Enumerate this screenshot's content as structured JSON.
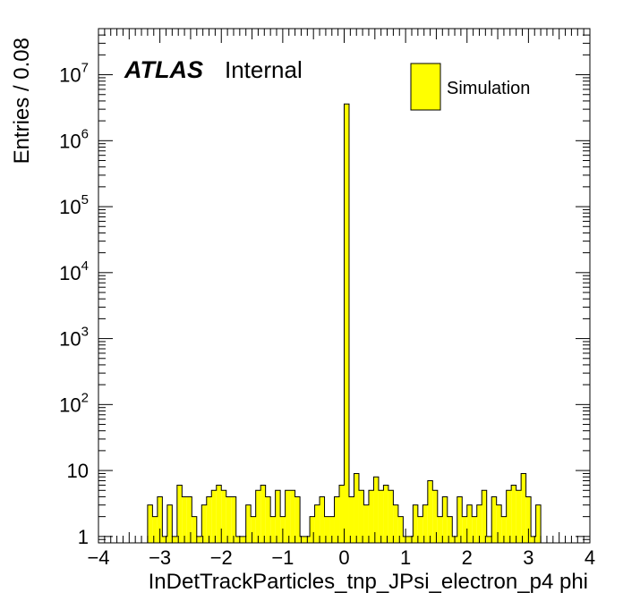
{
  "chart_data": {
    "type": "bar",
    "x_label": "InDetTrackParticles_tnp_JPsi_electron_p4 phi",
    "y_label": "Entries / 0.08",
    "xlim": [
      -4,
      4
    ],
    "ylim": [
      0.8,
      50000000
    ],
    "y_scale": "log",
    "bin_width": 0.08,
    "x_ticks": [
      "−4",
      "−3",
      "−2",
      "−1",
      "0",
      "1",
      "2",
      "3",
      "4"
    ],
    "y_ticks": [
      {
        "base": "1",
        "exp": ""
      },
      {
        "base": "10",
        "exp": ""
      },
      {
        "base": "10",
        "exp": "2"
      },
      {
        "base": "10",
        "exp": "3"
      },
      {
        "base": "10",
        "exp": "4"
      },
      {
        "base": "10",
        "exp": "5"
      },
      {
        "base": "10",
        "exp": "6"
      },
      {
        "base": "10",
        "exp": "7"
      }
    ],
    "atlas_label": "ATLAS",
    "atlas_status": "Internal",
    "legend": [
      {
        "name": "Simulation",
        "color": "#ffff00"
      }
    ],
    "fill_color": "#ffff00",
    "series": [
      {
        "name": "Simulation",
        "bins": [
          {
            "x": -3.2,
            "y": 3
          },
          {
            "x": -3.12,
            "y": 2
          },
          {
            "x": -3.04,
            "y": 4
          },
          {
            "x": -2.96,
            "y": 1
          },
          {
            "x": -2.88,
            "y": 3
          },
          {
            "x": -2.8,
            "y": 1
          },
          {
            "x": -2.72,
            "y": 6
          },
          {
            "x": -2.64,
            "y": 4
          },
          {
            "x": -2.56,
            "y": 4
          },
          {
            "x": -2.48,
            "y": 2
          },
          {
            "x": -2.4,
            "y": 1
          },
          {
            "x": -2.32,
            "y": 3
          },
          {
            "x": -2.24,
            "y": 4
          },
          {
            "x": -2.16,
            "y": 5
          },
          {
            "x": -2.08,
            "y": 6
          },
          {
            "x": -2.0,
            "y": 5
          },
          {
            "x": -1.92,
            "y": 4
          },
          {
            "x": -1.84,
            "y": 4
          },
          {
            "x": -1.76,
            "y": 1
          },
          {
            "x": -1.68,
            "y": 1
          },
          {
            "x": -1.6,
            "y": 3
          },
          {
            "x": -1.52,
            "y": 2
          },
          {
            "x": -1.44,
            "y": 5
          },
          {
            "x": -1.36,
            "y": 6
          },
          {
            "x": -1.28,
            "y": 4
          },
          {
            "x": -1.2,
            "y": 2
          },
          {
            "x": -1.12,
            "y": 5
          },
          {
            "x": -1.04,
            "y": 2
          },
          {
            "x": -0.96,
            "y": 5
          },
          {
            "x": -0.88,
            "y": 5
          },
          {
            "x": -0.8,
            "y": 4
          },
          {
            "x": -0.72,
            "y": 1
          },
          {
            "x": -0.64,
            "y": 1
          },
          {
            "x": -0.56,
            "y": 2
          },
          {
            "x": -0.48,
            "y": 3
          },
          {
            "x": -0.4,
            "y": 4
          },
          {
            "x": -0.32,
            "y": 2
          },
          {
            "x": -0.24,
            "y": 2
          },
          {
            "x": -0.16,
            "y": 4
          },
          {
            "x": -0.08,
            "y": 6
          },
          {
            "x": 0.0,
            "y": 3600000
          },
          {
            "x": 0.08,
            "y": 4
          },
          {
            "x": 0.16,
            "y": 9
          },
          {
            "x": 0.24,
            "y": 5
          },
          {
            "x": 0.32,
            "y": 3
          },
          {
            "x": 0.4,
            "y": 5
          },
          {
            "x": 0.48,
            "y": 8
          },
          {
            "x": 0.56,
            "y": 5
          },
          {
            "x": 0.64,
            "y": 6
          },
          {
            "x": 0.72,
            "y": 5
          },
          {
            "x": 0.8,
            "y": 3
          },
          {
            "x": 0.88,
            "y": 2
          },
          {
            "x": 0.96,
            "y": 1
          },
          {
            "x": 1.04,
            "y": 1
          },
          {
            "x": 1.12,
            "y": 3
          },
          {
            "x": 1.2,
            "y": 2
          },
          {
            "x": 1.28,
            "y": 3
          },
          {
            "x": 1.36,
            "y": 7
          },
          {
            "x": 1.44,
            "y": 5
          },
          {
            "x": 1.52,
            "y": 2
          },
          {
            "x": 1.6,
            "y": 4
          },
          {
            "x": 1.68,
            "y": 2
          },
          {
            "x": 1.76,
            "y": 1
          },
          {
            "x": 1.84,
            "y": 4
          },
          {
            "x": 1.92,
            "y": 2
          },
          {
            "x": 2.0,
            "y": 3
          },
          {
            "x": 2.08,
            "y": 2
          },
          {
            "x": 2.16,
            "y": 3
          },
          {
            "x": 2.24,
            "y": 5
          },
          {
            "x": 2.32,
            "y": 1
          },
          {
            "x": 2.4,
            "y": 4
          },
          {
            "x": 2.48,
            "y": 3
          },
          {
            "x": 2.56,
            "y": 2
          },
          {
            "x": 2.64,
            "y": 5
          },
          {
            "x": 2.72,
            "y": 6
          },
          {
            "x": 2.8,
            "y": 5
          },
          {
            "x": 2.88,
            "y": 9
          },
          {
            "x": 2.96,
            "y": 4
          },
          {
            "x": 3.04,
            "y": 1
          },
          {
            "x": 3.12,
            "y": 3
          }
        ]
      }
    ]
  }
}
